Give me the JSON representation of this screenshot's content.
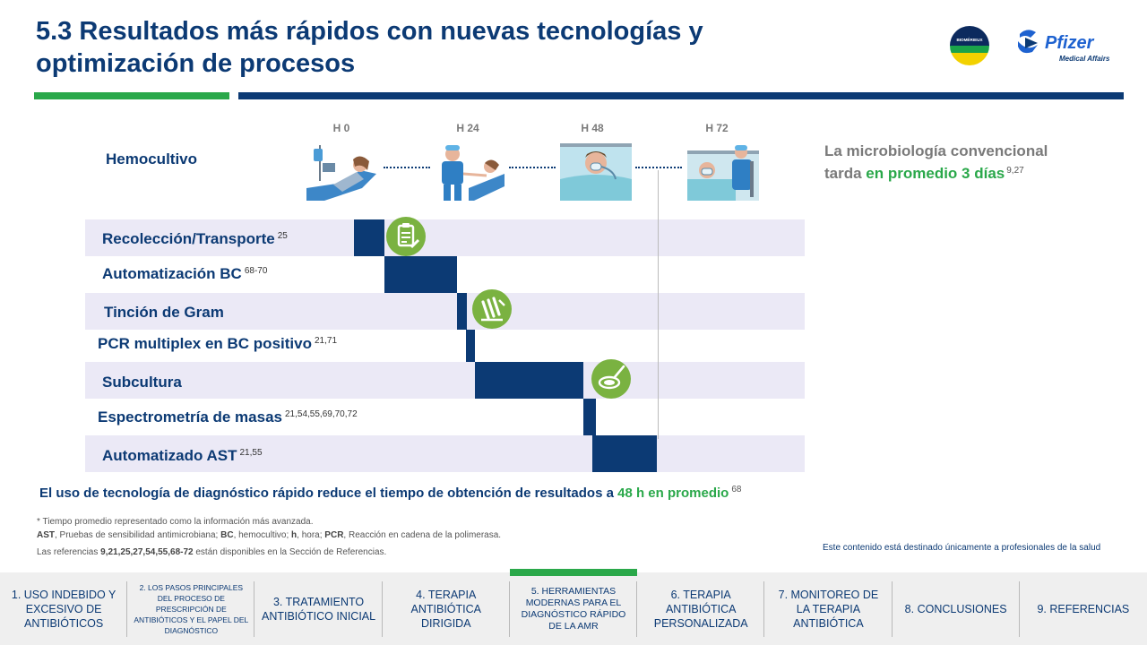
{
  "header": {
    "title": "5.3 Resultados más rápidos con nuevas tecnologías y optimización de procesos",
    "logo_bio": "BIOMÉRIEUX",
    "logo_pfizer": "Pfizer",
    "logo_pfizer_sub": "Medical Affairs"
  },
  "timeline": {
    "hours": [
      "H 0",
      "H 24",
      "H 48",
      "H 72"
    ],
    "top_label": "Hemocultivo",
    "rows": [
      {
        "label": "Recolección/Transporte",
        "ref": "25"
      },
      {
        "label": "Automatización BC",
        "ref": "68-70"
      },
      {
        "label": "Tinción de Gram",
        "ref": ""
      },
      {
        "label": "PCR multiplex en BC positivo",
        "ref": "21,71"
      },
      {
        "label": "Subcultura",
        "ref": ""
      },
      {
        "label": "Espectrometría de masas",
        "ref": "21,54,55,69,70,72"
      },
      {
        "label": "Automatizado AST",
        "ref": "21,55"
      }
    ]
  },
  "right_note": {
    "line1": "La microbiología convencional",
    "line2_pre": "tarda ",
    "line2_green": "en promedio 3 días",
    "ref": "9,27"
  },
  "summary": {
    "text": "El uso de tecnología de diagnóstico rápido reduce el tiempo de obtención de resultados a ",
    "green": "48 h en promedio",
    "ref": "68"
  },
  "footnotes": {
    "line1": "* Tiempo  promedio representado como la información más avanzada.",
    "line2_ast": "AST",
    "line2_a": ", Pruebas de sensibilidad antimicrobiana; ",
    "line2_bc": "BC",
    "line2_b": ", hemocultivo; ",
    "line2_h": "h",
    "line2_c": ", hora; ",
    "line2_pcr": "PCR",
    "line2_d": ", Reacción en cadena de la polimerasa.",
    "line3_pre": "Las referencias ",
    "line3_refs": "9,21,25,27,54,55,68-72",
    "line3_post": " están disponibles en la Sección de Referencias."
  },
  "disclaimer": "Este contenido está destinado únicamente a profesionales de la salud",
  "nav": [
    "1. USO INDEBIDO Y EXCESIVO DE ANTIBIÓTICOS",
    "2. LOS PASOS PRINCIPALES DEL PROCESO DE PRESCRIPCIÓN DE ANTIBIÓTICOS Y EL PAPEL DEL DIAGNÓSTICO",
    "3. TRATAMIENTO ANTIBIÓTICO INICIAL",
    "4. TERAPIA ANTIBIÓTICA DIRIGIDA",
    "5. HERRAMIENTAS MODERNAS PARA EL DIAGNÓSTICO RÁPIDO DE LA AMR",
    "6. TERAPIA ANTIBIÓTICA PERSONALIZADA",
    "7. MONITOREO DE LA TERAPIA ANTIBIÓTICA",
    "8. CONCLUSIONES",
    "9. REFERENCIAS"
  ],
  "colors": {
    "navy": "#0c3a74",
    "green": "#2aa84a",
    "row_shade": "#ebe9f6",
    "badge": "#7ab241"
  }
}
